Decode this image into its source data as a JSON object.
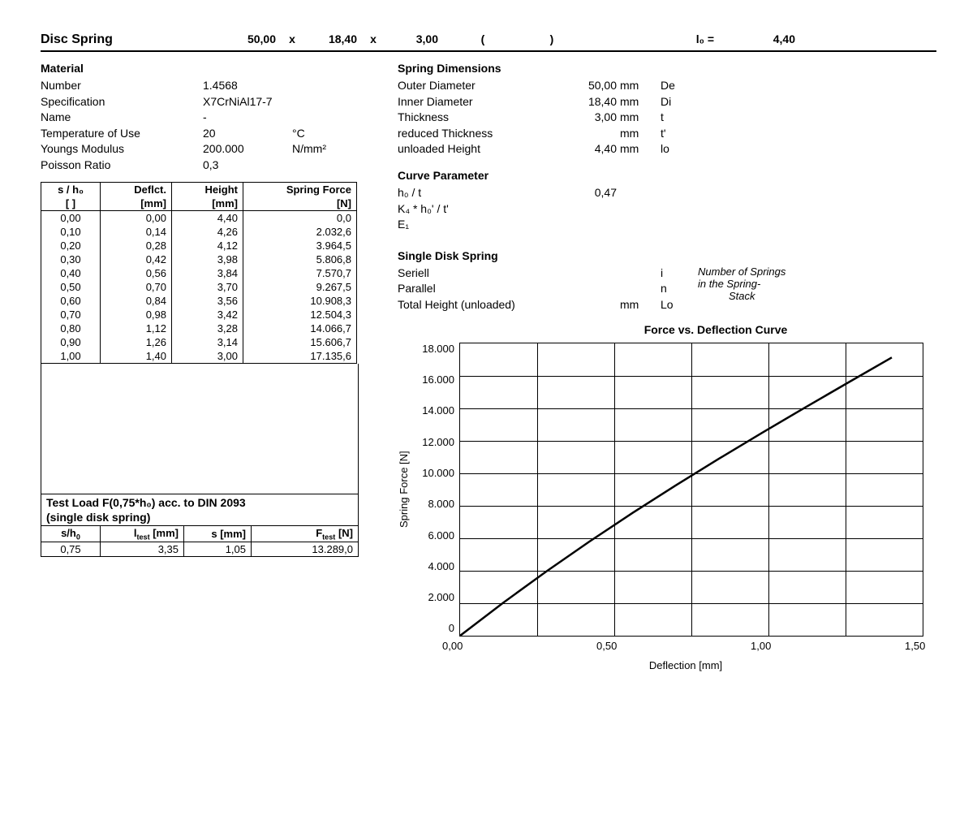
{
  "header": {
    "title": "Disc Spring",
    "dim1": "50,00",
    "x1": "x",
    "dim2": "18,40",
    "x2": "x",
    "dim3": "3,00",
    "paren_l": "(",
    "paren_r": ")",
    "l0_sym": "l₀ =",
    "l0_val": "4,40"
  },
  "material": {
    "heading": "Material",
    "rows": [
      {
        "label": "Number",
        "val": "1.4568",
        "unit": ""
      },
      {
        "label": "Specification",
        "val": "X7CrNiAl17-7",
        "unit": ""
      },
      {
        "label": "Name",
        "val": "-",
        "unit": ""
      },
      {
        "label": "Temperature of Use",
        "val": "20",
        "unit": "°C"
      },
      {
        "label": "Youngs Modulus",
        "val": "200.000",
        "unit": "N/mm²"
      },
      {
        "label": "Poisson Ratio",
        "val": "0,3",
        "unit": ""
      }
    ]
  },
  "dimensions": {
    "heading": "Spring Dimensions",
    "rows": [
      {
        "label": "Outer Diameter",
        "val": "50,00",
        "unit": "mm",
        "sym": "De"
      },
      {
        "label": "Inner Diameter",
        "val": "18,40",
        "unit": "mm",
        "sym": "Di"
      },
      {
        "label": "Thickness",
        "val": "3,00",
        "unit": "mm",
        "sym": "t"
      },
      {
        "label": "reduced Thickness",
        "val": "",
        "unit": "mm",
        "sym": "t'"
      },
      {
        "label": "unloaded Height",
        "val": "4,40",
        "unit": "mm",
        "sym": "lo"
      }
    ]
  },
  "curve": {
    "heading": "Curve Parameter",
    "h0t_label": "h₀ / t",
    "h0t_val": "0,47",
    "k4_label": "K₄ * h₀' / t'",
    "e1_label": "E₁"
  },
  "single": {
    "heading": "Single Disk Spring",
    "rows": [
      {
        "label": "Seriell",
        "val": "",
        "unit": "",
        "sym": "i"
      },
      {
        "label": "Parallel",
        "val": "",
        "unit": "",
        "sym": "n"
      },
      {
        "label": "Total Height (unloaded)",
        "val": "",
        "unit": "mm",
        "sym": "Lo"
      }
    ],
    "note1": "Number of Springs",
    "note2": "in the Spring-",
    "note3": "Stack"
  },
  "table": {
    "headers1": [
      "s / h₀",
      "Deflct.",
      "Height",
      "Spring Force"
    ],
    "headers2": [
      "[ ]",
      "[mm]",
      "[mm]",
      "[N]"
    ],
    "rows": [
      [
        "0,00",
        "0,00",
        "4,40",
        "0,0"
      ],
      [
        "0,10",
        "0,14",
        "4,26",
        "2.032,6"
      ],
      [
        "0,20",
        "0,28",
        "4,12",
        "3.964,5"
      ],
      [
        "0,30",
        "0,42",
        "3,98",
        "5.806,8"
      ],
      [
        "0,40",
        "0,56",
        "3,84",
        "7.570,7"
      ],
      [
        "0,50",
        "0,70",
        "3,70",
        "9.267,5"
      ],
      [
        "0,60",
        "0,84",
        "3,56",
        "10.908,3"
      ],
      [
        "0,70",
        "0,98",
        "3,42",
        "12.504,3"
      ],
      [
        "0,80",
        "1,12",
        "3,28",
        "14.066,7"
      ],
      [
        "0,90",
        "1,26",
        "3,14",
        "15.606,7"
      ],
      [
        "1,00",
        "1,40",
        "3,00",
        "17.135,6"
      ]
    ]
  },
  "test": {
    "title1": "Test Load F(0,75*h₀) acc. to DIN 2093",
    "title2": "(single disk spring)",
    "headers": [
      "s/h₀",
      "l_test [mm]",
      "s [mm]",
      "F_test [N]"
    ],
    "row": [
      "0,75",
      "3,35",
      "1,05",
      "13.289,0"
    ]
  },
  "chart": {
    "type": "line",
    "title": "Force vs. Deflection Curve",
    "xlabel": "Deflection [mm]",
    "ylabel": "Spring Force [N]",
    "xticks": [
      "0,00",
      "0,50",
      "1,00",
      "1,50"
    ],
    "yticks": [
      "18.000",
      "16.000",
      "14.000",
      "12.000",
      "10.000",
      "8.000",
      "6.000",
      "4.000",
      "2.000",
      "0"
    ],
    "xlim": [
      0,
      1.5
    ],
    "ylim": [
      0,
      18000
    ],
    "x_grid_every": 0.25,
    "y_grid_every": 2000,
    "line_color": "#000000",
    "line_width": 2.5,
    "grid_color": "#000000",
    "background": "#ffffff",
    "points": [
      [
        0.0,
        0.0
      ],
      [
        0.14,
        2032.6
      ],
      [
        0.28,
        3964.5
      ],
      [
        0.42,
        5806.8
      ],
      [
        0.56,
        7570.7
      ],
      [
        0.7,
        9267.5
      ],
      [
        0.84,
        10908.3
      ],
      [
        0.98,
        12504.3
      ],
      [
        1.12,
        14066.7
      ],
      [
        1.26,
        15606.7
      ],
      [
        1.4,
        17135.6
      ]
    ]
  }
}
